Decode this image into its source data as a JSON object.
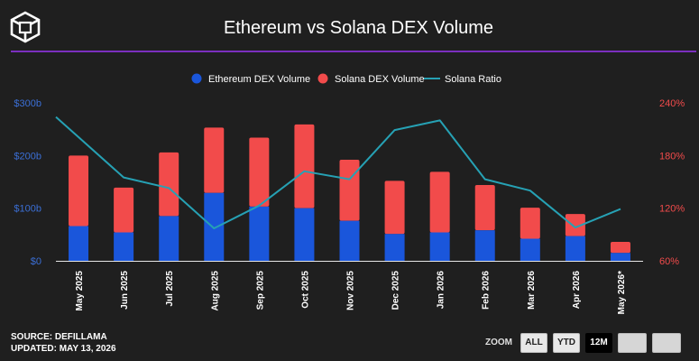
{
  "header": {
    "title": "Ethereum vs Solana DEX Volume",
    "logo_icon": "cube-logo-icon"
  },
  "footer": {
    "source": "SOURCE: DEFILLAMA",
    "updated": "UPDATED: MAY 13, 2026"
  },
  "zoom": {
    "label": "ZOOM",
    "buttons": [
      "ALL",
      "YTD",
      "12M"
    ],
    "active": "12M"
  },
  "colors": {
    "ethereum": "#1a56db",
    "solana": "#f24b4b",
    "ratio": "#26a1b4",
    "left_axis_text": "#3b6fd6",
    "right_axis_text": "#f24b4b",
    "title_rule": "#7b2fbf"
  },
  "chart_data": {
    "type": "bar",
    "stacked": true,
    "categories": [
      "May 2025",
      "Jun 2025",
      "Jul 2025",
      "Aug 2025",
      "Sep 2025",
      "Oct 2025",
      "Nov 2025",
      "Dec 2025",
      "Jan 2026",
      "Feb 2026",
      "Mar 2026",
      "Apr 2026",
      "May 2026*"
    ],
    "series": [
      {
        "name": "Ethereum DEX Volume",
        "type": "bar",
        "axis": "left",
        "values": [
          66,
          54,
          85,
          129,
          103,
          100,
          76,
          51,
          54,
          58,
          42,
          47,
          15
        ]
      },
      {
        "name": "Solana DEX Volume",
        "type": "bar",
        "axis": "left",
        "values": [
          134,
          85,
          121,
          124,
          131,
          159,
          116,
          101,
          115,
          86,
          59,
          42,
          21
        ]
      },
      {
        "name": "Solana Ratio",
        "type": "line",
        "axis": "right",
        "values": [
          201,
          155,
          143,
          97,
          123,
          162,
          153,
          209,
          220,
          153,
          140,
          98,
          119
        ]
      }
    ],
    "y_left": {
      "ticks": [
        "$0",
        "$100b",
        "$200b",
        "$300b"
      ],
      "tick_values": [
        0,
        100,
        200,
        300
      ],
      "ylim": [
        0,
        300
      ]
    },
    "y_right": {
      "ticks": [
        "60%",
        "120%",
        "180%",
        "240%"
      ],
      "tick_values": [
        60,
        120,
        180,
        240
      ],
      "ylim": [
        60,
        240
      ]
    },
    "legend_position": "top-center",
    "grid": false
  }
}
